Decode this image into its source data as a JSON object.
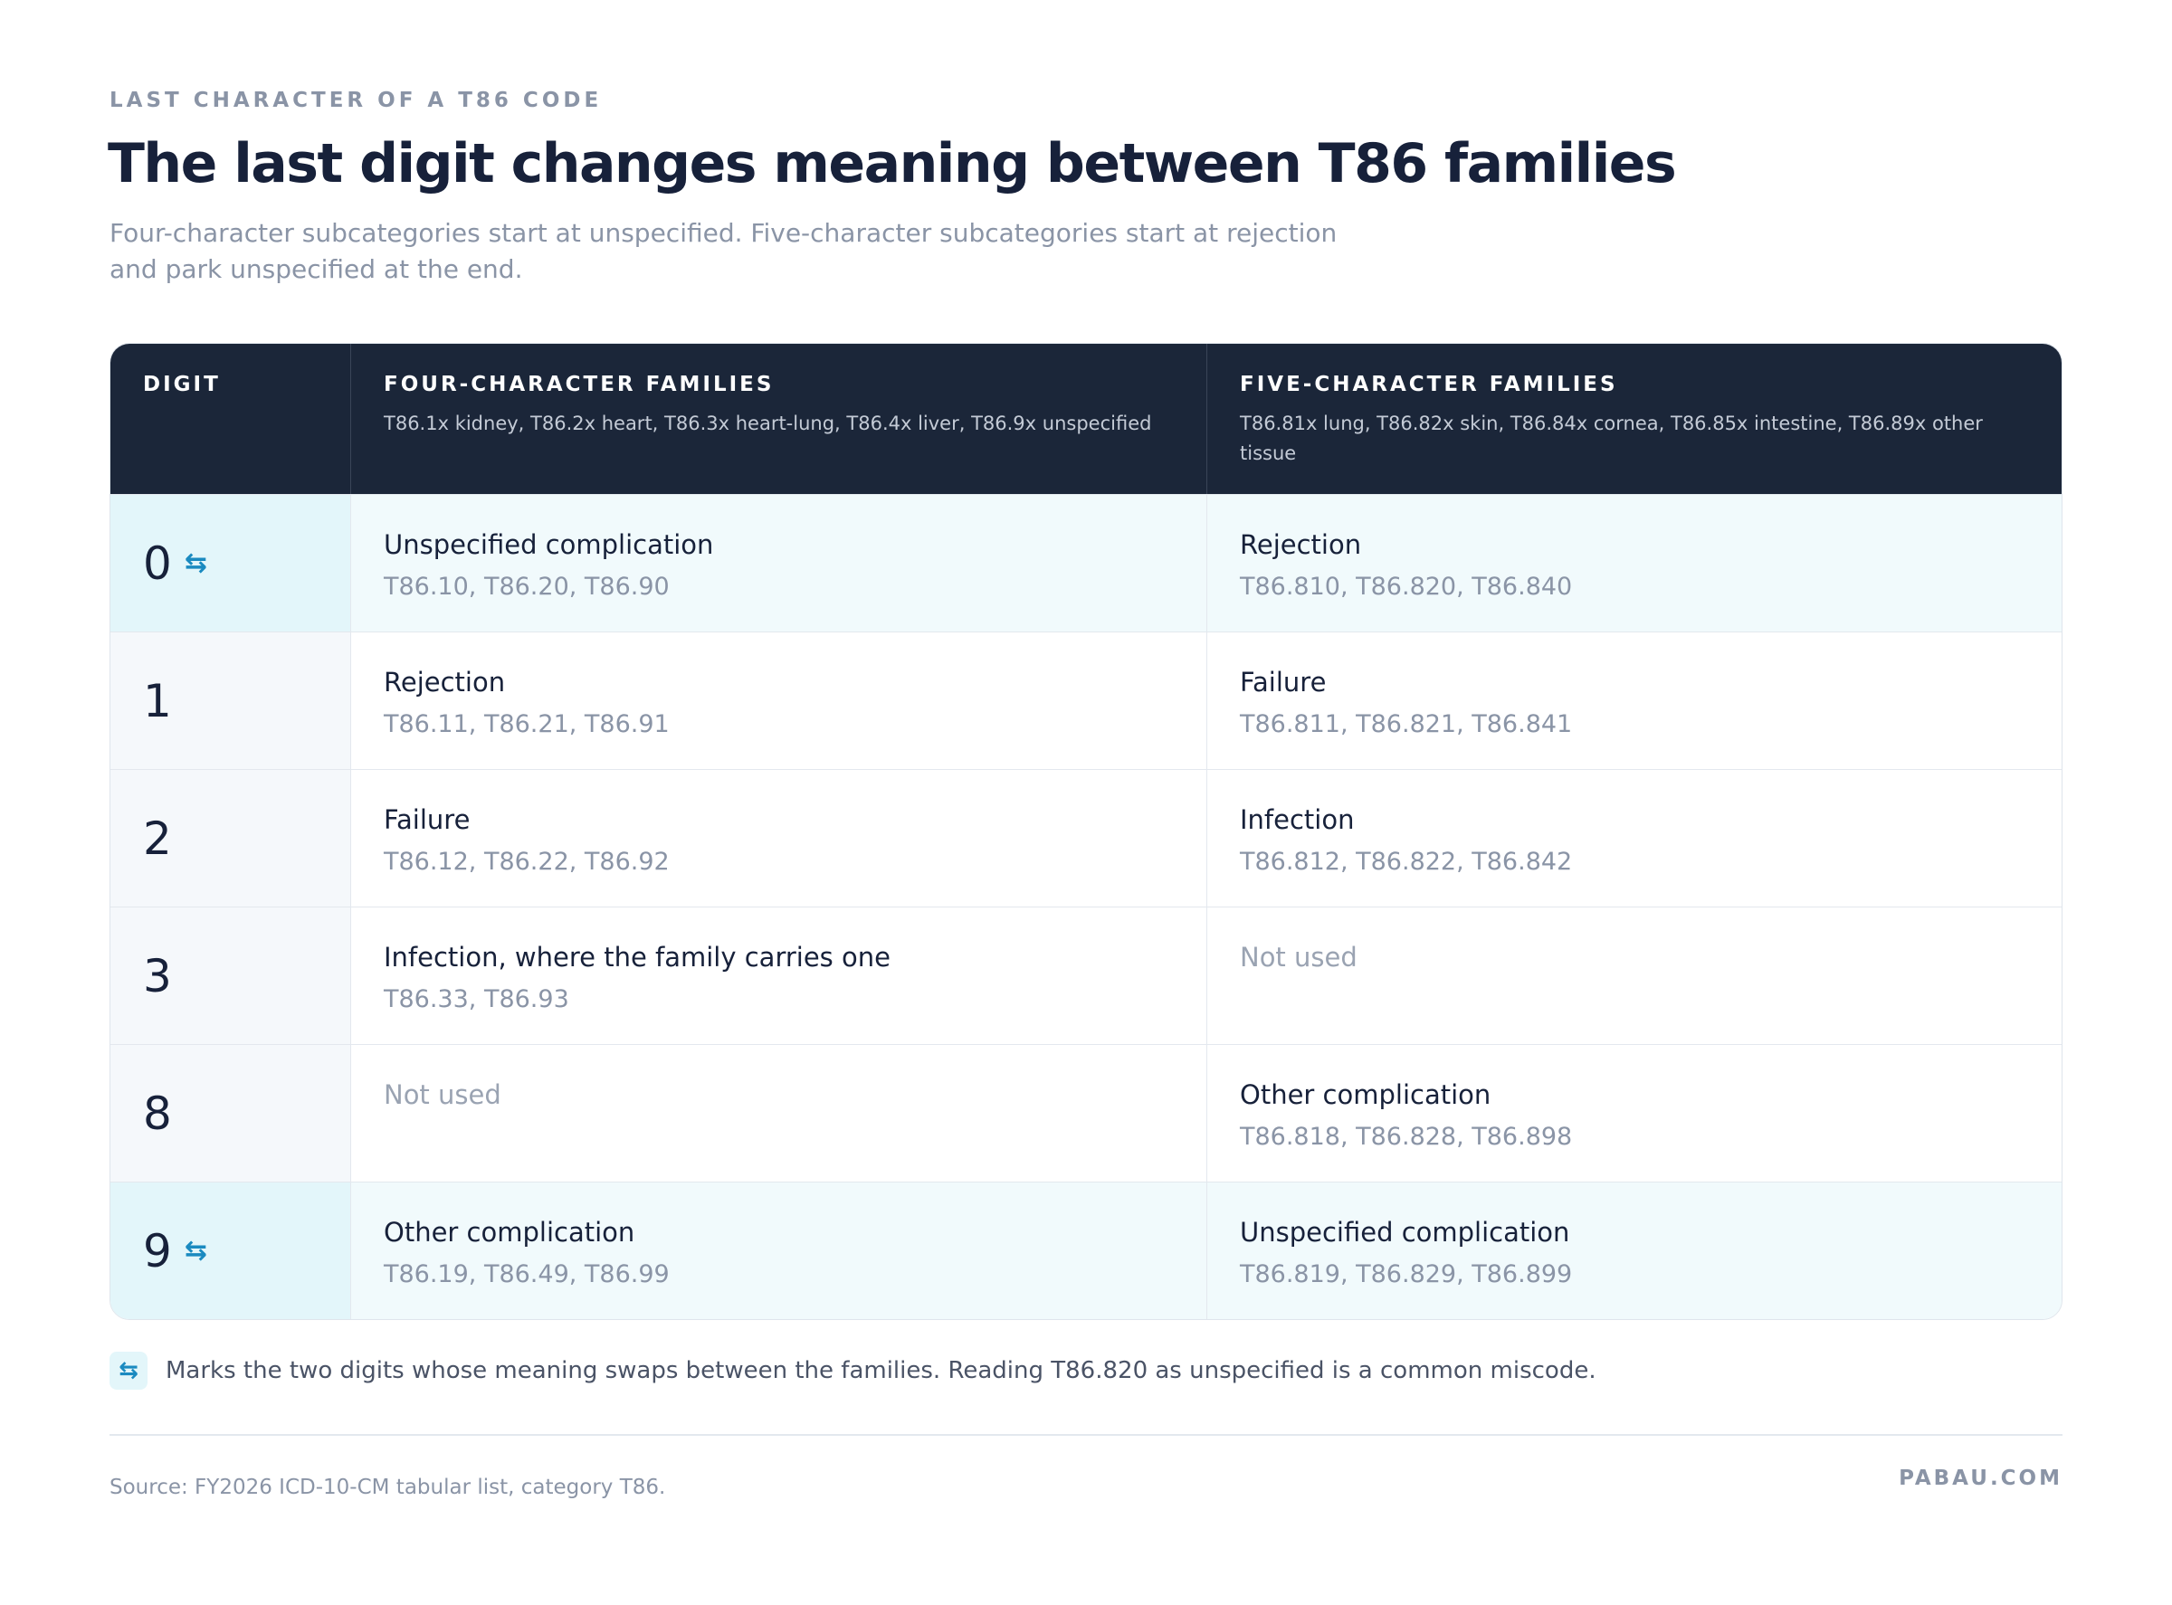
{
  "header": {
    "eyebrow": "LAST CHARACTER OF A T86 CODE",
    "title": "The last digit changes meaning between T86 families",
    "subtitle": "Four-character subcategories start at unspecified. Five-character subcategories start at rejection and park unspecified at the end."
  },
  "table": {
    "columns": [
      {
        "label": "DIGIT"
      },
      {
        "label": "FOUR-CHARACTER FAMILIES",
        "detail": "T86.1x kidney, T86.2x heart, T86.3x heart-lung, T86.4x liver, T86.9x unspecified"
      },
      {
        "label": "FIVE-CHARACTER FAMILIES",
        "detail": "T86.81x lung, T86.82x skin, T86.84x cornea, T86.85x intestine, T86.89x other tissue"
      }
    ],
    "rows": [
      {
        "digit": "0",
        "swap": true,
        "four": {
          "meaning": "Unspecified complication",
          "codes": "T86.10, T86.20, T86.90"
        },
        "five": {
          "meaning": "Rejection",
          "codes": "T86.810, T86.820, T86.840"
        }
      },
      {
        "digit": "1",
        "swap": false,
        "four": {
          "meaning": "Rejection",
          "codes": "T86.11, T86.21, T86.91"
        },
        "five": {
          "meaning": "Failure",
          "codes": "T86.811, T86.821, T86.841"
        }
      },
      {
        "digit": "2",
        "swap": false,
        "four": {
          "meaning": "Failure",
          "codes": "T86.12, T86.22, T86.92"
        },
        "five": {
          "meaning": "Infection",
          "codes": "T86.812, T86.822, T86.842"
        }
      },
      {
        "digit": "3",
        "swap": false,
        "four": {
          "meaning": "Infection, where the family carries one",
          "codes": "T86.33, T86.93"
        },
        "five": {
          "meaning": "Not used"
        }
      },
      {
        "digit": "8",
        "swap": false,
        "four": {
          "meaning": "Not used"
        },
        "five": {
          "meaning": "Other complication",
          "codes": "T86.818, T86.828, T86.898"
        }
      },
      {
        "digit": "9",
        "swap": true,
        "four": {
          "meaning": "Other complication",
          "codes": "T86.19, T86.49, T86.99"
        },
        "five": {
          "meaning": "Unspecified complication",
          "codes": "T86.819, T86.829, T86.899"
        }
      }
    ]
  },
  "note": "Marks the two digits whose meaning swaps between the families. Reading T86.820 as unspecified is a common miscode.",
  "footer": {
    "source": "Source: FY2026 ICD-10-CM tabular list, category T86.",
    "brand": "PABAU.COM"
  }
}
